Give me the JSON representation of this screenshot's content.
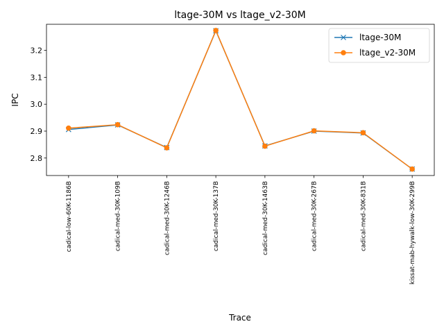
{
  "chart_data": {
    "type": "line",
    "title": "ltage-30M vs ltage_v2-30M",
    "xlabel": "Trace",
    "ylabel": "IPC",
    "categories": [
      "cadical-low-60K-1186B",
      "cadical-med-30K-109B",
      "cadical-med-30K-1246B",
      "cadical-med-30K-137B",
      "cadical-med-30K-1463B",
      "cadical-med-30K-267B",
      "cadical-med-30K-831B",
      "kissat-mab-hywalk-low-30K-299B"
    ],
    "series": [
      {
        "name": "ltage-30M",
        "color": "#1f77b4",
        "marker": "x",
        "values": [
          2.906,
          2.923,
          2.839,
          3.273,
          2.845,
          2.9,
          2.893,
          2.759
        ]
      },
      {
        "name": "ltage_v2-30M",
        "color": "#ff7f0e",
        "marker": "o",
        "values": [
          2.911,
          2.924,
          2.838,
          3.274,
          2.844,
          2.901,
          2.894,
          2.759
        ]
      }
    ],
    "ylim": [
      2.735,
      3.297
    ],
    "yticks": [
      2.8,
      2.9,
      3.0,
      3.1,
      3.2
    ],
    "ytick_labels": [
      "2.8",
      "2.9",
      "3.0",
      "3.1",
      "3.2"
    ],
    "grid": false,
    "legend_position": "top-right"
  }
}
